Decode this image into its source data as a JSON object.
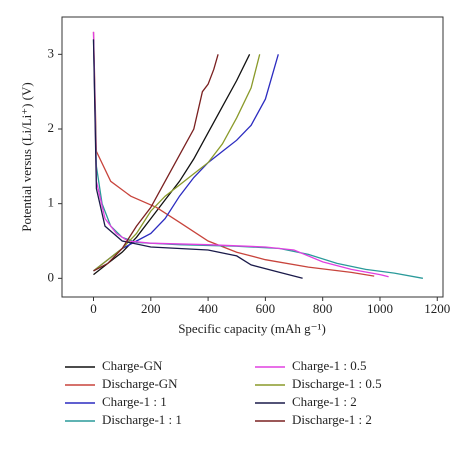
{
  "chart_data": {
    "type": "line",
    "xlabel": "Specific capacity (mAh g⁻¹)",
    "ylabel": "Potential versus (Li/Li⁺) (V)",
    "xlim": [
      -110,
      1220
    ],
    "ylim": [
      -0.25,
      3.5
    ],
    "xticks": [
      0,
      200,
      400,
      600,
      800,
      1000,
      1200
    ],
    "yticks": [
      0,
      1,
      2,
      3
    ],
    "series": [
      {
        "name": "Charge-GN",
        "color": "#111111",
        "x": [
          0,
          50,
          100,
          150,
          200,
          250,
          300,
          350,
          400,
          450,
          500,
          545
        ],
        "values": [
          0.05,
          0.2,
          0.35,
          0.55,
          0.8,
          1.05,
          1.3,
          1.6,
          1.95,
          2.3,
          2.65,
          3.0
        ]
      },
      {
        "name": "Discharge-GN",
        "color": "#c8443c",
        "x": [
          0,
          10,
          60,
          130,
          220,
          300,
          400,
          500,
          600,
          750,
          900,
          980
        ],
        "values": [
          3.3,
          1.7,
          1.3,
          1.1,
          0.95,
          0.75,
          0.5,
          0.35,
          0.25,
          0.15,
          0.08,
          0.03
        ]
      },
      {
        "name": "Charge-1 : 1",
        "color": "#2c2cc0",
        "x": [
          0,
          50,
          100,
          150,
          200,
          250,
          300,
          350,
          400,
          450,
          500,
          550,
          600,
          645
        ],
        "values": [
          0.1,
          0.25,
          0.4,
          0.5,
          0.6,
          0.8,
          1.1,
          1.35,
          1.55,
          1.7,
          1.85,
          2.05,
          2.4,
          3.0
        ]
      },
      {
        "name": "Discharge-1 : 1",
        "color": "#2a9a9a",
        "x": [
          0,
          10,
          30,
          60,
          100,
          150,
          300,
          500,
          650,
          750,
          850,
          950,
          1050,
          1150
        ],
        "values": [
          3.2,
          1.5,
          1.0,
          0.7,
          0.55,
          0.48,
          0.45,
          0.43,
          0.4,
          0.32,
          0.2,
          0.12,
          0.07,
          0.0
        ]
      },
      {
        "name": "Charge-1 : 0.5",
        "color": "#e040e0",
        "x": [
          0,
          10,
          40,
          80,
          120,
          200,
          400,
          600,
          700,
          800,
          900,
          1000,
          1030
        ],
        "values": [
          3.3,
          1.3,
          0.8,
          0.6,
          0.5,
          0.47,
          0.45,
          0.42,
          0.38,
          0.22,
          0.12,
          0.05,
          0.02
        ]
      },
      {
        "name": "Discharge-1 : 0.5",
        "color": "#8a9a2a",
        "x": [
          0,
          50,
          100,
          150,
          200,
          250,
          300,
          350,
          400,
          450,
          500,
          550,
          580
        ],
        "values": [
          0.1,
          0.25,
          0.4,
          0.6,
          0.9,
          1.1,
          1.25,
          1.4,
          1.55,
          1.8,
          2.15,
          2.55,
          3.0
        ]
      },
      {
        "name": "Charge-1 : 2",
        "color": "#1a1a4a",
        "x": [
          0,
          10,
          40,
          100,
          200,
          300,
          400,
          500,
          550,
          650,
          730
        ],
        "values": [
          3.2,
          1.2,
          0.7,
          0.5,
          0.42,
          0.4,
          0.38,
          0.3,
          0.18,
          0.08,
          0.0
        ]
      },
      {
        "name": "Discharge-1 : 2",
        "color": "#7a2020",
        "x": [
          0,
          50,
          100,
          150,
          200,
          250,
          300,
          350,
          380,
          400,
          420,
          435
        ],
        "values": [
          0.1,
          0.2,
          0.4,
          0.7,
          0.95,
          1.3,
          1.65,
          2.0,
          2.5,
          2.6,
          2.8,
          3.0
        ]
      }
    ]
  }
}
